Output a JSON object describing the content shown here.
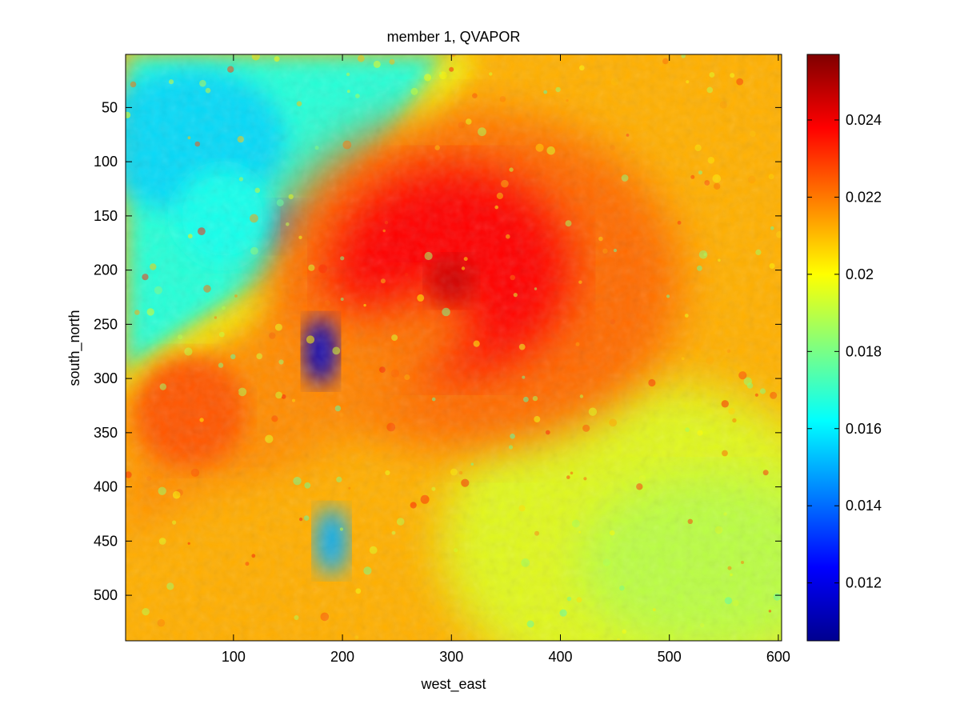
{
  "chart_data": {
    "type": "heatmap",
    "title": "member 1, QVAPOR",
    "xlabel": "west_east",
    "ylabel": "south_north",
    "xlim": [
      1,
      603
    ],
    "ylim": [
      542,
      1
    ],
    "y_reversed": true,
    "x_ticks": [
      100,
      200,
      300,
      400,
      500,
      600
    ],
    "y_ticks": [
      50,
      100,
      150,
      200,
      250,
      300,
      350,
      400,
      450,
      500
    ],
    "colormap": "jet",
    "colorbar": {
      "range": [
        0.0105,
        0.0257
      ],
      "ticks": [
        0.012,
        0.014,
        0.016,
        0.018,
        0.02,
        0.022,
        0.024
      ],
      "tick_labels": [
        "0.012",
        "0.014",
        "0.016",
        "0.018",
        "0.02",
        "0.022",
        "0.024"
      ]
    },
    "features": [
      {
        "kind": "cyclone-core-max",
        "x": 300,
        "y": 210,
        "value": 0.0245
      },
      {
        "kind": "dry-region",
        "x": 90,
        "y": 150,
        "value": 0.0165
      },
      {
        "kind": "dry-eddy",
        "x": 180,
        "y": 275,
        "value": 0.0115
      },
      {
        "kind": "dry-eddy",
        "x": 190,
        "y": 450,
        "value": 0.015
      },
      {
        "kind": "moist-band",
        "x": 60,
        "y": 330,
        "value": 0.0225
      }
    ]
  }
}
